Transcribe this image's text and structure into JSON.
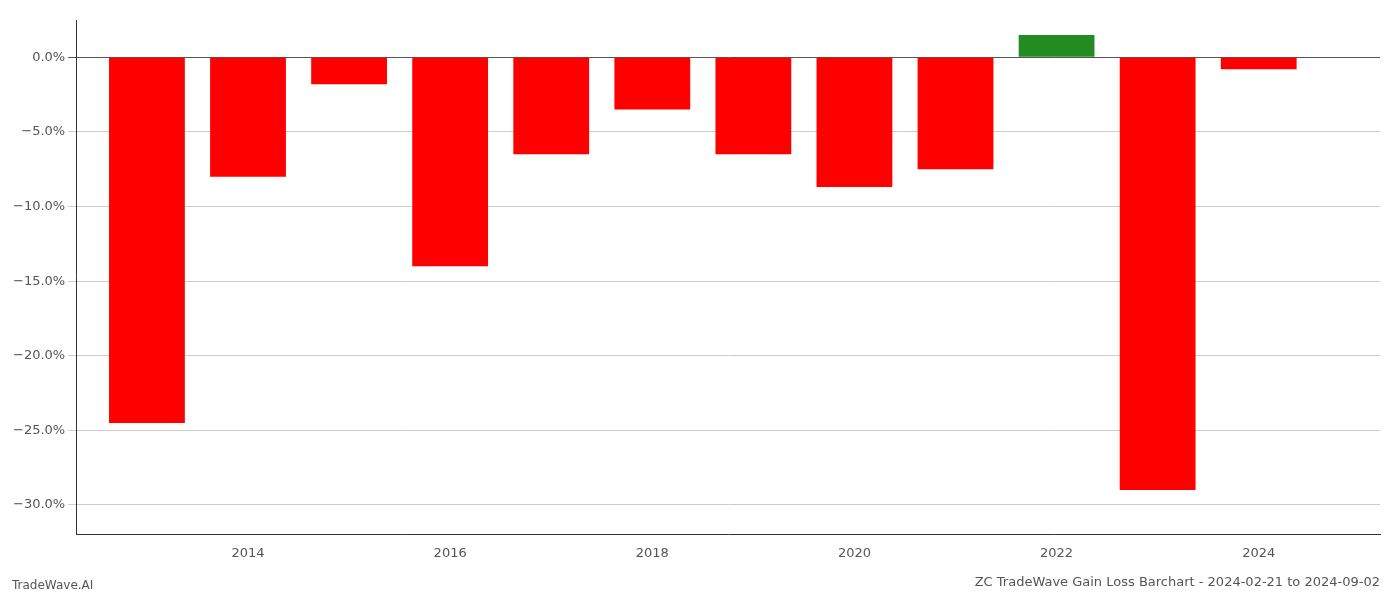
{
  "chart_data": {
    "type": "bar",
    "title": "ZC TradeWave Gain Loss Barchart - 2024-02-21 to 2024-09-02",
    "annotations": [
      "TradeWave.AI"
    ],
    "x": [
      2013,
      2014,
      2015,
      2016,
      2017,
      2018,
      2019,
      2020,
      2021,
      2022,
      2023,
      2024
    ],
    "values": [
      -24.5,
      -8.0,
      -1.8,
      -14.0,
      -6.5,
      -3.5,
      -6.5,
      -8.7,
      -7.5,
      1.5,
      -29.0,
      -0.8
    ],
    "colors": [
      "#ff0000",
      "#ff0000",
      "#ff0000",
      "#ff0000",
      "#ff0000",
      "#ff0000",
      "#ff0000",
      "#ff0000",
      "#ff0000",
      "#228B22",
      "#ff0000",
      "#ff0000"
    ],
    "xlim": [
      2012.3,
      2025.2
    ],
    "xticks": [
      2014,
      2016,
      2018,
      2020,
      2022,
      2024
    ],
    "ylim": [
      -32,
      2.5
    ],
    "yticks": [
      {
        "value": 0.0,
        "label": "0.0%"
      },
      {
        "value": -5.0,
        "label": "−5.0%"
      },
      {
        "value": -10.0,
        "label": "−10.0%"
      },
      {
        "value": -15.0,
        "label": "−15.0%"
      },
      {
        "value": -20.0,
        "label": "−20.0%"
      },
      {
        "value": -25.0,
        "label": "−25.0%"
      },
      {
        "value": -30.0,
        "label": "−30.0%"
      }
    ],
    "grid": true
  }
}
